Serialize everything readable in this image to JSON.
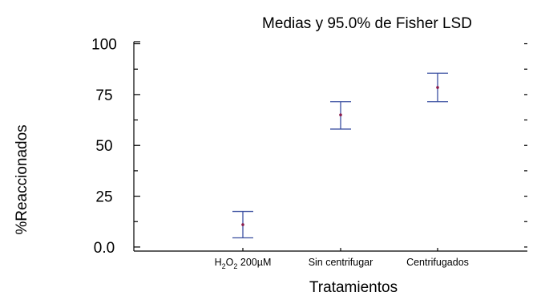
{
  "chart_data": {
    "type": "scatter",
    "title": "Medias y 95.0% de Fisher LSD",
    "xlabel": "Tratamientos",
    "ylabel": "%Reaccionados",
    "categories": [
      "H2O2 200µM",
      "Sin centrifugar",
      "Centrifugados"
    ],
    "category_labels": [
      {
        "parts": [
          {
            "t": "H"
          },
          {
            "t": "2",
            "sub": true
          },
          {
            "t": "O"
          },
          {
            "t": "2",
            "sub": true
          },
          {
            "t": " 200µM"
          }
        ]
      },
      {
        "parts": [
          {
            "t": "Sin centrifugar"
          }
        ]
      },
      {
        "parts": [
          {
            "t": "Centrifugados"
          }
        ]
      }
    ],
    "series": [
      {
        "means": [
          11.0,
          65.0,
          78.5
        ],
        "lower": [
          4.5,
          58.0,
          71.5
        ],
        "upper": [
          17.5,
          71.5,
          85.5
        ]
      }
    ],
    "ylim": [
      -2,
      101
    ],
    "yticks": [
      0,
      25,
      50,
      75,
      100
    ],
    "yticklabels": [
      "0.0",
      "25",
      "50",
      "75",
      "100"
    ],
    "grid": false,
    "colors": {
      "interval": "#3a4fa0",
      "mean": "#8b1a4a",
      "axes": "#000000"
    }
  }
}
